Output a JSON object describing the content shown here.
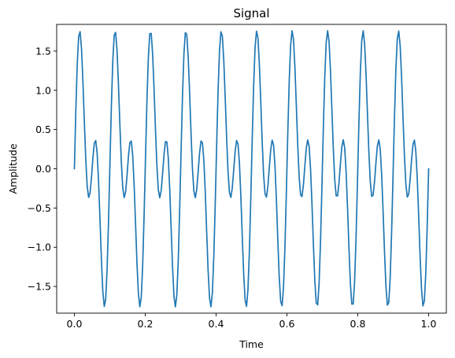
{
  "chart_data": {
    "type": "line",
    "title": "Signal",
    "xlabel": "Time",
    "ylabel": "Amplitude",
    "xlim": [
      -0.05,
      1.05
    ],
    "ylim": [
      -1.84,
      1.84
    ],
    "grid": false,
    "x_ticks": [
      0.0,
      0.2,
      0.4,
      0.6,
      0.8,
      1.0
    ],
    "x_tick_labels": [
      "0.0",
      "0.2",
      "0.4",
      "0.6",
      "0.8",
      "1.0"
    ],
    "y_ticks": [
      1.5,
      1.0,
      0.5,
      0.0,
      -0.5,
      -1.0,
      -1.5
    ],
    "y_tick_labels": [
      "1.5",
      "1.0",
      "0.5",
      "0.0",
      "−0.5",
      "−1.0",
      "−1.5"
    ],
    "series": [
      {
        "color": "#1f77b4",
        "components": [
          {
            "amplitude": 1.0,
            "frequency": 10
          },
          {
            "amplitude": 1.0,
            "frequency": 20
          }
        ],
        "x_start": 0.0,
        "x_end": 1.0,
        "samples": 250
      }
    ]
  }
}
